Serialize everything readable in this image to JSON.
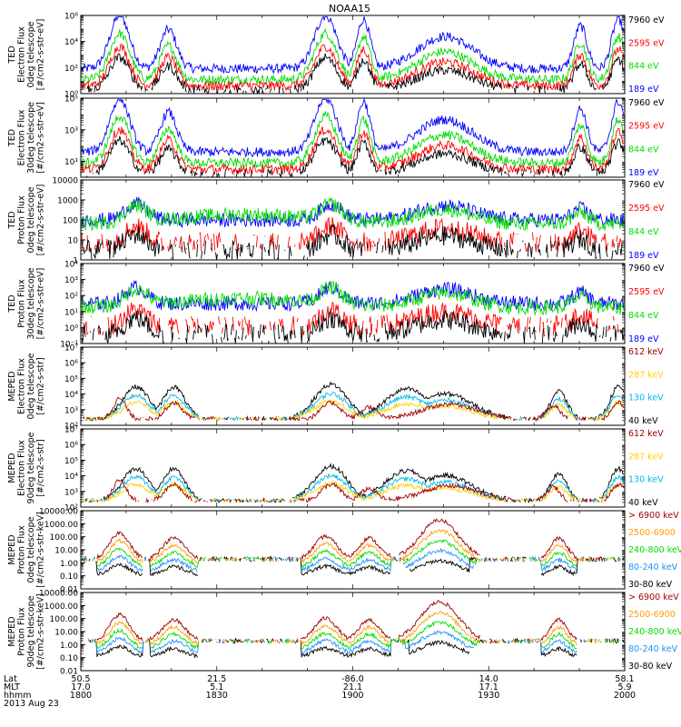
{
  "title": "NOAA15",
  "colors": {
    "black": "#000000",
    "blue": "#0000ff",
    "green": "#00dd00",
    "red": "#ff0000",
    "darkred": "#a00000",
    "yellow": "#ffd000",
    "cyan": "#00bbee",
    "orange": "#ff9f00",
    "lightblue": "#2090ff"
  },
  "footer": {
    "row_labels": [
      "Lat",
      "MLT",
      "hhmm",
      "2013 Aug 23"
    ],
    "ticks": [
      {
        "lat": "50.5",
        "mlt": "17.0",
        "hhmm": "1800"
      },
      {
        "lat": "21.5",
        "mlt": "5.1",
        "hhmm": "1830"
      },
      {
        "lat": "-86.0",
        "mlt": "21.1",
        "hhmm": "1900"
      },
      {
        "lat": "14.0",
        "mlt": "17.1",
        "hhmm": "1930"
      },
      {
        "lat": "58.1",
        "mlt": "5.9",
        "hhmm": "2000"
      }
    ]
  },
  "chart_data": [
    {
      "type": "line",
      "ylabel": [
        "TED",
        "Electron Flux",
        "0deg telescope",
        "[#/cm2-s-str-eV]"
      ],
      "yscale": "log",
      "ylim": [
        1,
        1000000
      ],
      "yticks": [
        {
          "v": 1,
          "label": "10⁰"
        },
        {
          "v": 100,
          "label": "10²"
        },
        {
          "v": 10000,
          "label": "10⁴"
        },
        {
          "v": 1000000,
          "label": "10⁶"
        }
      ],
      "series": [
        {
          "name": "7960 eV",
          "color": "#000000"
        },
        {
          "name": "2595 eV",
          "color": "#ff0000"
        },
        {
          "name": "844 eV",
          "color": "#00dd00"
        },
        {
          "name": "189 eV",
          "color": "#0000ff"
        }
      ]
    },
    {
      "type": "line",
      "ylabel": [
        "TED",
        "Electron Flux",
        "30deg telescope",
        "[#/cm2-s-str-eV]"
      ],
      "yscale": "log",
      "ylim": [
        1,
        100000
      ],
      "yticks": [
        {
          "v": 10,
          "label": "10¹"
        },
        {
          "v": 1000,
          "label": "10³"
        },
        {
          "v": 100000,
          "label": "10⁵"
        }
      ],
      "series": [
        {
          "name": "7960 eV",
          "color": "#000000"
        },
        {
          "name": "2595 eV",
          "color": "#ff0000"
        },
        {
          "name": "844 eV",
          "color": "#00dd00"
        },
        {
          "name": "189 eV",
          "color": "#0000ff"
        }
      ]
    },
    {
      "type": "line",
      "ylabel": [
        "TED",
        "Proton Flux",
        "0deg telescope",
        "[#/cm2-s-str-eV]"
      ],
      "yscale": "log",
      "ylim": [
        1,
        10000
      ],
      "yticks": [
        {
          "v": 1,
          "label": "1"
        },
        {
          "v": 10,
          "label": "10"
        },
        {
          "v": 100,
          "label": "100"
        },
        {
          "v": 1000,
          "label": "1000"
        },
        {
          "v": 10000,
          "label": "10000"
        }
      ],
      "series": [
        {
          "name": "7960 eV",
          "color": "#000000"
        },
        {
          "name": "2595 eV",
          "color": "#ff0000"
        },
        {
          "name": "844 eV",
          "color": "#00dd00"
        },
        {
          "name": "189 eV",
          "color": "#0000ff"
        }
      ]
    },
    {
      "type": "line",
      "ylabel": [
        "TED",
        "Proton Flux",
        "30deg telescope",
        "[#/cm2-s-str-eV]"
      ],
      "yscale": "log",
      "ylim": [
        0.1,
        10000
      ],
      "yticks": [
        {
          "v": 0.1,
          "label": "10⁻¹"
        },
        {
          "v": 1,
          "label": "10⁰"
        },
        {
          "v": 10,
          "label": "10¹"
        },
        {
          "v": 100,
          "label": "10²"
        },
        {
          "v": 1000,
          "label": "10³"
        },
        {
          "v": 10000,
          "label": "10⁴"
        }
      ],
      "series": [
        {
          "name": "7960 eV",
          "color": "#000000"
        },
        {
          "name": "2595 eV",
          "color": "#ff0000"
        },
        {
          "name": "844 eV",
          "color": "#00dd00"
        },
        {
          "name": "189 eV",
          "color": "#0000ff"
        }
      ]
    },
    {
      "type": "line",
      "ylabel": [
        "MEPED",
        "Electron Flux",
        "0deg telescope",
        "[#/cm2-s-str]"
      ],
      "yscale": "log",
      "ylim": [
        100,
        10000000
      ],
      "yticks": [
        {
          "v": 100,
          "label": "10²"
        },
        {
          "v": 1000,
          "label": "10³"
        },
        {
          "v": 10000,
          "label": "10⁴"
        },
        {
          "v": 100000,
          "label": "10⁵"
        },
        {
          "v": 1000000,
          "label": "10⁶"
        },
        {
          "v": 10000000,
          "label": "10⁷"
        }
      ],
      "series": [
        {
          "name": "612 keV",
          "color": "#a00000"
        },
        {
          "name": "287 keV",
          "color": "#ffd000"
        },
        {
          "name": "130 keV",
          "color": "#00bbee"
        },
        {
          "name": "40 keV",
          "color": "#000000"
        }
      ]
    },
    {
      "type": "line",
      "ylabel": [
        "MEPED",
        "Electron Flux",
        "90deg telescope",
        "[#/cm2-s-str]"
      ],
      "yscale": "log",
      "ylim": [
        100,
        10000000
      ],
      "yticks": [
        {
          "v": 100,
          "label": "10²"
        },
        {
          "v": 1000,
          "label": "10³"
        },
        {
          "v": 10000,
          "label": "10⁴"
        },
        {
          "v": 100000,
          "label": "10⁵"
        },
        {
          "v": 1000000,
          "label": "10⁶"
        },
        {
          "v": 10000000,
          "label": "10⁷"
        }
      ],
      "series": [
        {
          "name": "612 keV",
          "color": "#a00000"
        },
        {
          "name": "287 keV",
          "color": "#ffd000"
        },
        {
          "name": "130 keV",
          "color": "#00bbee"
        },
        {
          "name": "40 keV",
          "color": "#000000"
        }
      ]
    },
    {
      "type": "line",
      "ylabel": [
        "MEPED",
        "Proton Flux",
        "0deg telescope",
        "[#/cm2-s-str-keV]"
      ],
      "yscale": "log",
      "ylim": [
        0.01,
        10000
      ],
      "yticks": [
        {
          "v": 0.01,
          "label": "0.01"
        },
        {
          "v": 0.1,
          "label": "0.10"
        },
        {
          "v": 1,
          "label": "1.00"
        },
        {
          "v": 10,
          "label": "10.00"
        },
        {
          "v": 100,
          "label": "100.00"
        },
        {
          "v": 1000,
          "label": "1000.00"
        },
        {
          "v": 10000,
          "label": "10000.00"
        }
      ],
      "series": [
        {
          "name": "> 6900 keV",
          "color": "#a00000"
        },
        {
          "name": "2500-6900",
          "color": "#ff9f00"
        },
        {
          "name": "240-800 keV",
          "color": "#00dd00"
        },
        {
          "name": "80-240 keV",
          "color": "#2090ff"
        },
        {
          "name": "30-80 keV",
          "color": "#000000"
        }
      ]
    },
    {
      "type": "line",
      "ylabel": [
        "MEPED",
        "Proton Flux",
        "90deg telescope",
        "[#/cm2-s-str-keV]"
      ],
      "yscale": "log",
      "ylim": [
        0.01,
        10000
      ],
      "yticks": [
        {
          "v": 0.01,
          "label": "0.01"
        },
        {
          "v": 0.1,
          "label": "0.10"
        },
        {
          "v": 1,
          "label": "1.00"
        },
        {
          "v": 10,
          "label": "10.00"
        },
        {
          "v": 100,
          "label": "100.00"
        },
        {
          "v": 1000,
          "label": "1000.00"
        },
        {
          "v": 10000,
          "label": "10000.00"
        }
      ],
      "series": [
        {
          "name": "> 6900 keV",
          "color": "#a00000"
        },
        {
          "name": "2500-6900",
          "color": "#ff9f00"
        },
        {
          "name": "240-800 keV",
          "color": "#00dd00"
        },
        {
          "name": "80-240 keV",
          "color": "#2090ff"
        },
        {
          "name": "30-80 keV",
          "color": "#000000"
        }
      ]
    }
  ]
}
